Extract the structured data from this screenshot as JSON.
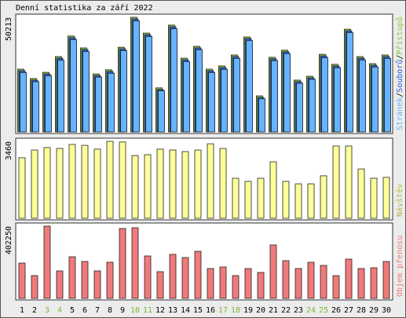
{
  "title": "Denní statistika za září 2022",
  "chart_data": [
    {
      "type": "bar",
      "ylim": [
        0,
        50213
      ],
      "yticks": [
        50213
      ],
      "legend_separator": "/",
      "series": [
        {
          "name": "Stránek",
          "color": "#66b3ff",
          "values": [
            26000,
            22000,
            24600,
            31400,
            40400,
            35200,
            24000,
            25700,
            35600,
            48600,
            41800,
            18000,
            45200,
            30800,
            36000,
            26000,
            27400,
            32200,
            40000,
            14500,
            31200,
            34300,
            21300,
            23000,
            32500,
            28100,
            43500,
            31500,
            28400,
            32200
          ]
        },
        {
          "name": "Souborů",
          "color": "#2a5fd8",
          "values": [
            26800,
            22700,
            25400,
            32300,
            41300,
            36100,
            24700,
            26500,
            36400,
            49500,
            42600,
            18600,
            46100,
            31600,
            36800,
            26800,
            28200,
            33000,
            40900,
            15100,
            32000,
            35100,
            22000,
            23700,
            33300,
            28900,
            44300,
            32300,
            29200,
            33000
          ]
        },
        {
          "name": "Přístupů",
          "color": "#8cc63f",
          "values": [
            27500,
            23400,
            26100,
            33000,
            42000,
            36800,
            25400,
            27200,
            37100,
            50213,
            43300,
            19300,
            46800,
            32300,
            37500,
            27500,
            28900,
            33700,
            41600,
            15800,
            32700,
            35800,
            22700,
            24400,
            34000,
            29600,
            45000,
            33000,
            29900,
            33700
          ]
        }
      ]
    },
    {
      "type": "bar",
      "ylim": [
        0,
        3460
      ],
      "yticks": [
        3460
      ],
      "series": [
        {
          "name": "Návštěv",
          "color": "#ffff99",
          "values": [
            2720,
            3070,
            3180,
            3140,
            3320,
            3280,
            3110,
            3460,
            3430,
            2820,
            2860,
            3110,
            3070,
            3000,
            3070,
            3350,
            3140,
            1800,
            1660,
            1800,
            2540,
            1660,
            1550,
            1550,
            1910,
            3250,
            3250,
            2220,
            1800,
            1840
          ]
        }
      ]
    },
    {
      "type": "bar",
      "ylim": [
        0,
        402250
      ],
      "yticks": [
        402250
      ],
      "categories": [
        "1",
        "2",
        "3",
        "4",
        "5",
        "6",
        "7",
        "8",
        "9",
        "10",
        "11",
        "12",
        "13",
        "14",
        "15",
        "16",
        "17",
        "18",
        "19",
        "20",
        "21",
        "22",
        "23",
        "24",
        "25",
        "26",
        "27",
        "28",
        "29",
        "30"
      ],
      "category_colors": [
        "#000",
        "#000",
        "#7fb537",
        "#7fb537",
        "#000",
        "#000",
        "#000",
        "#000",
        "#000",
        "#7fb537",
        "#7fb537",
        "#000",
        "#000",
        "#000",
        "#000",
        "#000",
        "#7fb537",
        "#7fb537",
        "#000",
        "#000",
        "#000",
        "#000",
        "#000",
        "#7fb537",
        "#7fb537",
        "#000",
        "#000",
        "#000",
        "#000",
        "#000"
      ],
      "series": [
        {
          "name": "Objem přenosu",
          "color": "#f07a7a",
          "values": [
            196700,
            126800,
            402250,
            153000,
            231700,
            205500,
            153000,
            201100,
            389100,
            393500,
            236100,
            148700,
            244800,
            227400,
            262300,
            166100,
            174900,
            126800,
            166100,
            144300,
            297300,
            209900,
            166100,
            201100,
            183600,
            126800,
            218600,
            166100,
            170500,
            205500
          ]
        }
      ]
    }
  ]
}
